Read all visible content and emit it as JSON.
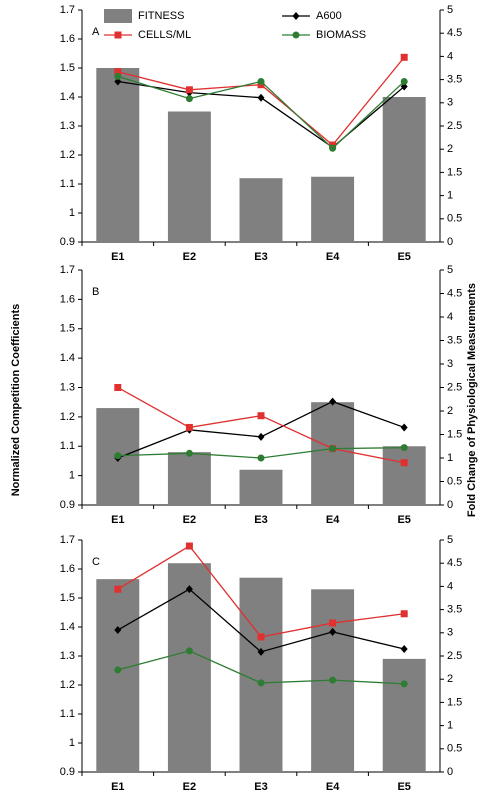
{
  "chart_data": [
    {
      "type": "bar_line",
      "panel_label": "A",
      "legend": "top",
      "ylabel": "Normalized Competition Coefficients",
      "y2label": "Fold Change of Physiological Measurements",
      "categories": [
        "E1",
        "E2",
        "E3",
        "E4",
        "E5"
      ],
      "ylim": [
        0.9,
        1.7
      ],
      "yticks": [
        0.9,
        1,
        1.1,
        1.2,
        1.3,
        1.4,
        1.5,
        1.6,
        1.7
      ],
      "y2lim": [
        0,
        5
      ],
      "y2ticks": [
        0,
        0.5,
        1,
        1.5,
        2,
        2.5,
        3,
        3.5,
        4,
        4.5,
        5
      ],
      "series": [
        {
          "name": "FITNESS",
          "kind": "bar",
          "color": "#808080",
          "values": [
            1.5,
            1.35,
            1.12,
            1.125,
            1.4
          ]
        },
        {
          "name": "A600",
          "kind": "line",
          "marker": "diamond",
          "color": "#000000",
          "axis": "y2",
          "values": [
            3.46,
            3.22,
            3.11,
            2.04,
            3.35
          ]
        },
        {
          "name": "CELLS/ML",
          "kind": "line",
          "marker": "square",
          "color": "#e03030",
          "axis": "y2",
          "values": [
            3.67,
            3.28,
            3.39,
            2.09,
            3.98
          ]
        },
        {
          "name": "BIOMASS",
          "kind": "line",
          "marker": "circle",
          "color": "#2e7d32",
          "axis": "y2",
          "values": [
            3.57,
            3.09,
            3.46,
            2.02,
            3.46
          ]
        }
      ]
    },
    {
      "type": "bar_line",
      "panel_label": "B",
      "categories": [
        "E1",
        "E2",
        "E3",
        "E4",
        "E5"
      ],
      "ylim": [
        0.9,
        1.7
      ],
      "yticks": [
        0.9,
        1,
        1.1,
        1.2,
        1.3,
        1.4,
        1.5,
        1.6,
        1.7
      ],
      "y2lim": [
        0,
        5
      ],
      "y2ticks": [
        0,
        0.5,
        1,
        1.5,
        2,
        2.5,
        3,
        3.5,
        4,
        4.5,
        5
      ],
      "series": [
        {
          "kind": "bar",
          "color": "#808080",
          "values": [
            1.23,
            1.08,
            1.02,
            1.25,
            1.1
          ]
        },
        {
          "kind": "line",
          "marker": "diamond",
          "color": "#000000",
          "axis": "y2",
          "values": [
            1.0,
            1.6,
            1.45,
            2.2,
            1.65
          ]
        },
        {
          "kind": "line",
          "marker": "square",
          "color": "#e03030",
          "axis": "y2",
          "values": [
            2.5,
            1.65,
            1.9,
            1.2,
            0.9
          ]
        },
        {
          "kind": "line",
          "marker": "circle",
          "color": "#2e7d32",
          "axis": "y2",
          "values": [
            1.05,
            1.1,
            1.0,
            1.2,
            1.22
          ]
        }
      ]
    },
    {
      "type": "bar_line",
      "panel_label": "C",
      "categories": [
        "E1",
        "E2",
        "E3",
        "E4",
        "E5"
      ],
      "ylim": [
        0.9,
        1.7
      ],
      "yticks": [
        0.9,
        1,
        1.1,
        1.2,
        1.3,
        1.4,
        1.5,
        1.6,
        1.7
      ],
      "y2lim": [
        0,
        5
      ],
      "y2ticks": [
        0,
        0.5,
        1,
        1.5,
        2,
        2.5,
        3,
        3.5,
        4,
        4.5,
        5
      ],
      "series": [
        {
          "kind": "bar",
          "color": "#808080",
          "values": [
            1.565,
            1.62,
            1.57,
            1.53,
            1.29
          ]
        },
        {
          "kind": "line",
          "marker": "diamond",
          "color": "#000000",
          "axis": "y2",
          "values": [
            3.06,
            3.94,
            2.59,
            3.02,
            2.65
          ]
        },
        {
          "kind": "line",
          "marker": "square",
          "color": "#e03030",
          "axis": "y2",
          "values": [
            3.94,
            4.87,
            2.91,
            3.21,
            3.41
          ]
        },
        {
          "kind": "line",
          "marker": "circle",
          "color": "#2e7d32",
          "axis": "y2",
          "values": [
            2.2,
            2.61,
            1.92,
            1.98,
            1.9
          ]
        }
      ]
    }
  ]
}
